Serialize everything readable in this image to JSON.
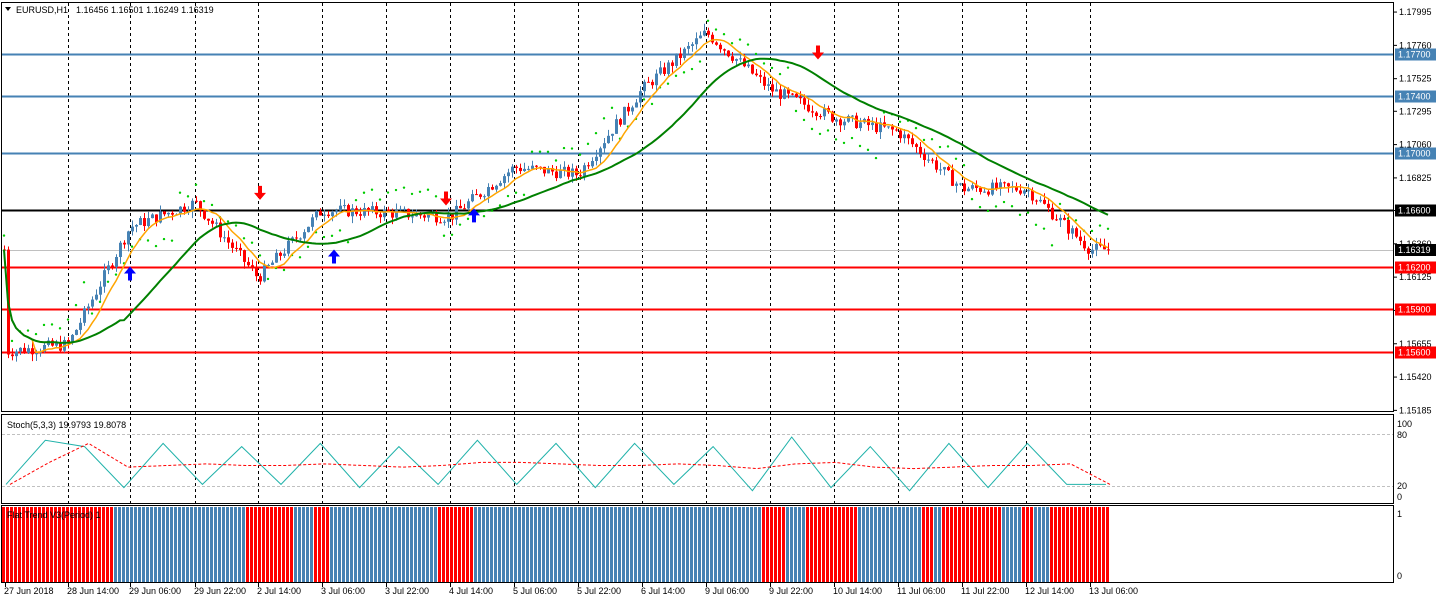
{
  "header": {
    "symbol": "EURUSD,H1",
    "quote": "1.16456 1.16501 1.16249 1.16319"
  },
  "price_axis": {
    "ticks": [
      "1.17995",
      "1.17760",
      "1.17525",
      "1.17295",
      "1.17060",
      "1.16825",
      "1.16595",
      "1.16360",
      "1.16125",
      "1.15890",
      "1.15655",
      "1.15420",
      "1.15185"
    ],
    "current_price": "1.16319"
  },
  "levels": [
    {
      "price": 1.177,
      "label": "1.17700",
      "color": "#4682b4"
    },
    {
      "price": 1.174,
      "label": "1.17400",
      "color": "#4682b4"
    },
    {
      "price": 1.17,
      "label": "1.17000",
      "color": "#4682b4"
    },
    {
      "price": 1.166,
      "label": "1.16600",
      "color": "#000000"
    },
    {
      "price": 1.162,
      "label": "1.16200",
      "color": "#ff0000"
    },
    {
      "price": 1.159,
      "label": "1.15900",
      "color": "#ff0000"
    },
    {
      "price": 1.156,
      "label": "1.15600",
      "color": "#ff0000"
    }
  ],
  "time_axis": {
    "labels": [
      "27 Jun 2018",
      "28 Jun 14:00",
      "29 Jun 06:00",
      "29 Jun 22:00",
      "2 Jul 14:00",
      "3 Jul 06:00",
      "3 Jul 22:00",
      "4 Jul 14:00",
      "5 Jul 06:00",
      "5 Jul 22:00",
      "6 Jul 14:00",
      "9 Jul 06:00",
      "9 Jul 22:00",
      "10 Jul 14:00",
      "11 Jul 06:00",
      "11 Jul 22:00",
      "12 Jul 14:00",
      "13 Jul 06:00"
    ]
  },
  "stoch": {
    "title": "Stoch(5,3,3) 19.9793 19.8078",
    "ticks": [
      "100",
      "80",
      "20",
      "0"
    ]
  },
  "flat_trend": {
    "title": "Flat Trend V3(Period) 1",
    "ticks": [
      "1",
      "0"
    ]
  },
  "colors": {
    "up_candle": "#4682b4",
    "down_candle": "#ff0000",
    "ma_fast": "#ffa500",
    "ma_slow": "#008000",
    "sar": "#00cc00",
    "stoch_main": "#20b2aa",
    "stoch_signal": "#ff0000"
  },
  "chart_data": {
    "type": "candlestick",
    "symbol": "EURUSD",
    "timeframe": "H1",
    "last": {
      "open": 1.16456,
      "high": 1.16501,
      "low": 1.16249,
      "close": 1.16319
    },
    "ylim": [
      1.1508,
      1.1814
    ],
    "key_points": [
      {
        "time": "27 Jun 2018",
        "price": 1.156
      },
      {
        "time": "28 Jun 14:00",
        "price": 1.1565
      },
      {
        "time": "29 Jun 06:00",
        "price": 1.1648
      },
      {
        "time": "29 Jun 22:00",
        "price": 1.1665
      },
      {
        "time": "2 Jul 14:00",
        "price": 1.1612
      },
      {
        "time": "3 Jul 06:00",
        "price": 1.166
      },
      {
        "time": "3 Jul 22:00",
        "price": 1.1658
      },
      {
        "time": "4 Jul 14:00",
        "price": 1.1655
      },
      {
        "time": "5 Jul 06:00",
        "price": 1.169
      },
      {
        "time": "5 Jul 22:00",
        "price": 1.1685
      },
      {
        "time": "6 Jul 14:00",
        "price": 1.1745
      },
      {
        "time": "9 Jul 06:00",
        "price": 1.1785
      },
      {
        "time": "9 Jul 22:00",
        "price": 1.1745
      },
      {
        "time": "10 Jul 14:00",
        "price": 1.1725
      },
      {
        "time": "11 Jul 06:00",
        "price": 1.1715
      },
      {
        "time": "11 Jul 22:00",
        "price": 1.1675
      },
      {
        "time": "12 Jul 14:00",
        "price": 1.1675
      },
      {
        "time": "13 Jul 06:00",
        "price": 1.1632
      }
    ],
    "stoch_values": [
      20,
      90,
      80,
      15,
      85,
      20,
      80,
      20,
      85,
      15,
      80,
      20,
      90,
      20,
      85,
      15,
      85,
      20,
      80,
      10,
      95,
      15,
      80,
      10,
      85,
      15,
      85,
      20,
      20
    ]
  }
}
